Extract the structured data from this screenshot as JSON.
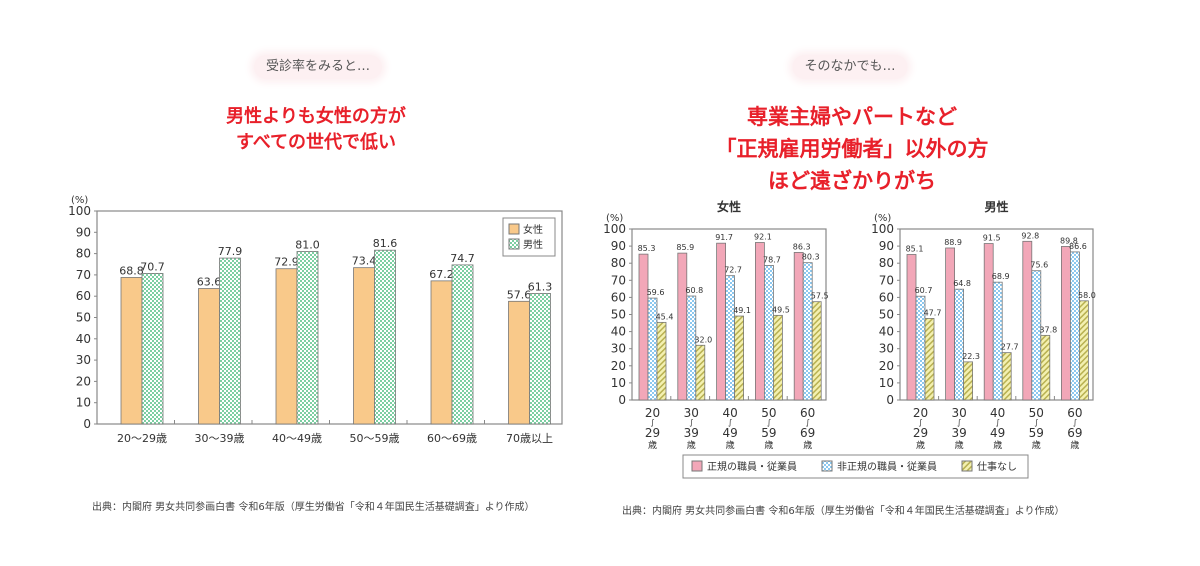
{
  "left": {
    "pill": "受診率をみると…",
    "headline": [
      "男性よりも女性の方が",
      "すべての世代で低い"
    ],
    "source": "出典：内閣府 男女共同参画白書 令和6年版（厚生労働省「令和４年国民生活基礎調査」より作成）"
  },
  "right": {
    "pill": "そのなかでも…",
    "headline": [
      "専業主婦やパートなど",
      "「正規雇用労働者」以外の方",
      "ほど遠ざかりがち"
    ],
    "source": "出典：内閣府 男女共同参画白書 令和6年版（厚生労働省「令和４年国民生活基礎調査」より作成）"
  },
  "colors": {
    "female": "#f9c98a",
    "male": "#bfe8d0",
    "regular": "#f2a7b8",
    "nonregular": "#bfe0f5",
    "nowork": "#ecec9a",
    "headline": "#e8202a"
  },
  "chart_data": [
    {
      "type": "bar",
      "title": "",
      "ylabel": "(%)",
      "ylim": [
        0,
        100
      ],
      "yticks": [
        0,
        10,
        20,
        30,
        40,
        50,
        60,
        70,
        80,
        90,
        100
      ],
      "categories": [
        "20〜29歳",
        "30〜39歳",
        "40〜49歳",
        "50〜59歳",
        "60〜69歳",
        "70歳以上"
      ],
      "series": [
        {
          "name": "女性",
          "values": [
            68.8,
            63.6,
            72.9,
            73.4,
            67.2,
            57.6
          ]
        },
        {
          "name": "男性",
          "values": [
            70.7,
            77.9,
            81.0,
            81.6,
            74.7,
            61.3
          ]
        }
      ],
      "legend": "top-right"
    },
    {
      "type": "bar",
      "title": "女性",
      "ylabel": "(%)",
      "ylim": [
        0,
        100
      ],
      "yticks": [
        0,
        10,
        20,
        30,
        40,
        50,
        60,
        70,
        80,
        90,
        100
      ],
      "categories": [
        [
          "20",
          "29",
          "歳"
        ],
        [
          "30",
          "39",
          "歳"
        ],
        [
          "40",
          "49",
          "歳"
        ],
        [
          "50",
          "59",
          "歳"
        ],
        [
          "60",
          "69",
          "歳"
        ]
      ],
      "series": [
        {
          "name": "正規の職員・従業員",
          "values": [
            85.3,
            85.9,
            91.7,
            92.1,
            86.3
          ]
        },
        {
          "name": "非正規の職員・従業員",
          "values": [
            59.6,
            60.8,
            72.7,
            78.7,
            80.3
          ]
        },
        {
          "name": "仕事なし",
          "values": [
            45.4,
            32.0,
            49.1,
            49.5,
            57.5
          ]
        }
      ],
      "legend": "bottom"
    },
    {
      "type": "bar",
      "title": "男性",
      "ylabel": "(%)",
      "ylim": [
        0,
        100
      ],
      "yticks": [
        0,
        10,
        20,
        30,
        40,
        50,
        60,
        70,
        80,
        90,
        100
      ],
      "categories": [
        [
          "20",
          "29",
          "歳"
        ],
        [
          "30",
          "39",
          "歳"
        ],
        [
          "40",
          "49",
          "歳"
        ],
        [
          "50",
          "59",
          "歳"
        ],
        [
          "60",
          "69",
          "歳"
        ]
      ],
      "series": [
        {
          "name": "正規の職員・従業員",
          "values": [
            85.1,
            88.9,
            91.5,
            92.8,
            89.8
          ]
        },
        {
          "name": "非正規の職員・従業員",
          "values": [
            60.7,
            64.8,
            68.9,
            75.6,
            86.6
          ]
        },
        {
          "name": "仕事なし",
          "values": [
            47.7,
            22.3,
            27.7,
            37.8,
            58.0
          ]
        }
      ],
      "legend": "bottom"
    }
  ]
}
